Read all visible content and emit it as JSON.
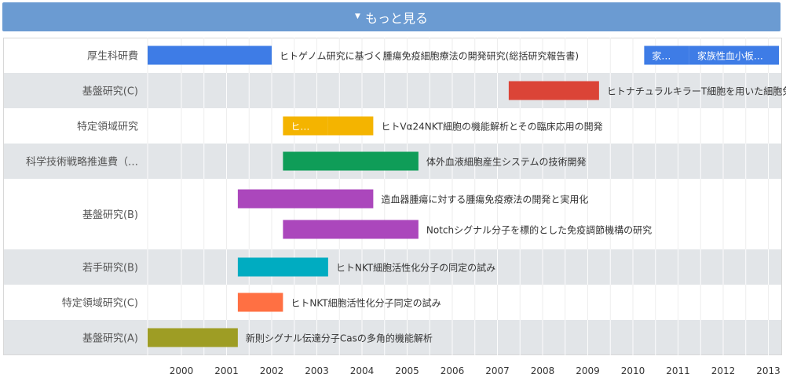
{
  "header": {
    "more_label": "もっと見る",
    "caret_icon": "caret-down-icon"
  },
  "chart_data": {
    "type": "timeline",
    "x_axis": {
      "ticks": [
        2000,
        2001,
        2002,
        2003,
        2004,
        2005,
        2006,
        2007,
        2008,
        2009,
        2010,
        2011,
        2012,
        2013
      ]
    },
    "rows": [
      {
        "label": "厚生科研費",
        "items": [
          {
            "label": "ヒトゲノム研究に基づく腫瘍免疫細胞療法の開発研究(総括研究報告書)",
            "start": 1999.0,
            "end": 2002.0,
            "color": "#3e7ce6",
            "lane": 0
          },
          {
            "label": "家…",
            "start": 2010.25,
            "end": 2011.25,
            "color": "#3e7ce6",
            "lane": 0
          },
          {
            "label": "家族性血小板…",
            "start": 2011.25,
            "end": 2013.5,
            "color": "#3e7ce6",
            "lane": 0
          }
        ]
      },
      {
        "label": "基盤研究(C)",
        "items": [
          {
            "label": "ヒトナチュラルキラーT細胞を用いた細胞免疫療法の開発",
            "start": 2007.25,
            "end": 2009.25,
            "color": "#db4437",
            "lane": 0
          }
        ]
      },
      {
        "label": "特定領域研究",
        "items": [
          {
            "label": "ヒ…",
            "start": 2002.25,
            "end": 2003.25,
            "color": "#f4b400",
            "lane": 0
          },
          {
            "label": "ヒトVα24NKT細胞の機能解析とその臨床応用の開発",
            "start": 2003.25,
            "end": 2004.25,
            "color": "#f4b400",
            "lane": 0
          }
        ]
      },
      {
        "label": "科学技術戦略推進費（…",
        "items": [
          {
            "label": "体外血液細胞産生システムの技術開発",
            "start": 2002.25,
            "end": 2005.25,
            "color": "#0f9d58",
            "lane": 0
          }
        ]
      },
      {
        "label": "基盤研究(B)",
        "items": [
          {
            "label": "造血器腫瘍に対する腫瘍免疫療法の開発と実用化",
            "start": 2001.25,
            "end": 2004.25,
            "color": "#ab47bc",
            "lane": 0
          },
          {
            "label": "Notchシグナル分子を標的とした免疫調節機構の研究",
            "start": 2002.25,
            "end": 2005.25,
            "color": "#ab47bc",
            "lane": 1
          }
        ]
      },
      {
        "label": "若手研究(B)",
        "items": [
          {
            "label": "ヒトNKT細胞活性化分子の同定の試み",
            "start": 2001.25,
            "end": 2003.25,
            "color": "#00acc1",
            "lane": 0
          }
        ]
      },
      {
        "label": "特定領域研究(C)",
        "items": [
          {
            "label": "ヒトNKT細胞活性化分子同定の試み",
            "start": 2001.25,
            "end": 2002.25,
            "color": "#ff7043",
            "lane": 0
          }
        ]
      },
      {
        "label": "基盤研究(A)",
        "items": [
          {
            "label": "新則シグナル伝達分子Casの多角的機能解析",
            "start": 1999.0,
            "end": 2001.25,
            "color": "#9e9d24",
            "lane": 0
          }
        ]
      }
    ]
  }
}
